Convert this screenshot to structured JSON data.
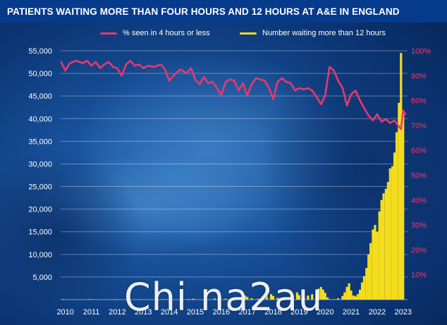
{
  "colors": {
    "pct_line": "#e8386d",
    "wait_bars": "#f5dd1c",
    "left_ticks": "#ffffff",
    "right_ticks": "#ec3b73",
    "grid": "#ffffff"
  },
  "chart_data": {
    "type": "bar+line",
    "title": "PATIENTS WAITING MORE THAN FOUR HOURS AND 12 HOURS AT A&E IN ENGLAND",
    "legend": [
      {
        "label": "% seen in 4 hours or less",
        "series": "pct"
      },
      {
        "label": "Number waiting more than 12 hours",
        "series": "wait"
      }
    ],
    "legend_position": "top-right",
    "grid": true,
    "x_ticks": [
      "2010",
      "2011",
      "2012",
      "2013",
      "2014",
      "2015",
      "2016",
      "2017",
      "2018",
      "2019",
      "2020",
      "2021",
      "2022",
      "2023"
    ],
    "y_left": {
      "min": 0,
      "max": 55000,
      "ticks": [
        5000,
        10000,
        15000,
        20000,
        25000,
        30000,
        35000,
        40000,
        45000,
        50000,
        55000
      ],
      "tick_labels": [
        "5,000",
        "10,000",
        "15,000",
        "20,000",
        "25,000",
        "30,000",
        "35,000",
        "40,000",
        "45,000",
        "50,000",
        "55,000"
      ]
    },
    "y_right": {
      "min": 0,
      "max": 100,
      "ticks": [
        10,
        20,
        30,
        40,
        50,
        60,
        70,
        80,
        90,
        100
      ],
      "tick_labels": [
        "10%",
        "20%",
        "30%",
        "40%",
        "50%",
        "60%",
        "70%",
        "80%",
        "90%",
        "100%"
      ]
    },
    "series": [
      {
        "name": "% seen in 4 hours or less",
        "axis": "right",
        "type": "line",
        "values": [
          {
            "x": 2009.92,
            "y": 95.5
          },
          {
            "x": 2010.08,
            "y": 92.0
          },
          {
            "x": 2010.25,
            "y": 95.0
          },
          {
            "x": 2010.5,
            "y": 96.0
          },
          {
            "x": 2010.75,
            "y": 95.0
          },
          {
            "x": 2010.92,
            "y": 96.0
          },
          {
            "x": 2011.08,
            "y": 94.0
          },
          {
            "x": 2011.25,
            "y": 95.5
          },
          {
            "x": 2011.42,
            "y": 93.0
          },
          {
            "x": 2011.58,
            "y": 94.5
          },
          {
            "x": 2011.75,
            "y": 95.5
          },
          {
            "x": 2011.92,
            "y": 93.5
          },
          {
            "x": 2012.08,
            "y": 93.0
          },
          {
            "x": 2012.25,
            "y": 90.0
          },
          {
            "x": 2012.42,
            "y": 94.5
          },
          {
            "x": 2012.58,
            "y": 96.0
          },
          {
            "x": 2012.75,
            "y": 94.0
          },
          {
            "x": 2012.92,
            "y": 94.5
          },
          {
            "x": 2013.08,
            "y": 93.0
          },
          {
            "x": 2013.25,
            "y": 94.0
          },
          {
            "x": 2013.5,
            "y": 93.5
          },
          {
            "x": 2013.75,
            "y": 94.5
          },
          {
            "x": 2013.92,
            "y": 92.5
          },
          {
            "x": 2014.08,
            "y": 88.0
          },
          {
            "x": 2014.25,
            "y": 90.0
          },
          {
            "x": 2014.5,
            "y": 92.5
          },
          {
            "x": 2014.75,
            "y": 91.0
          },
          {
            "x": 2014.92,
            "y": 93.0
          },
          {
            "x": 2015.08,
            "y": 88.5
          },
          {
            "x": 2015.25,
            "y": 86.5
          },
          {
            "x": 2015.42,
            "y": 89.5
          },
          {
            "x": 2015.58,
            "y": 87.0
          },
          {
            "x": 2015.75,
            "y": 87.5
          },
          {
            "x": 2015.92,
            "y": 85.0
          },
          {
            "x": 2016.08,
            "y": 82.0
          },
          {
            "x": 2016.25,
            "y": 87.5
          },
          {
            "x": 2016.42,
            "y": 88.5
          },
          {
            "x": 2016.58,
            "y": 88.0
          },
          {
            "x": 2016.75,
            "y": 84.0
          },
          {
            "x": 2016.92,
            "y": 87.0
          },
          {
            "x": 2017.08,
            "y": 82.0
          },
          {
            "x": 2017.25,
            "y": 86.5
          },
          {
            "x": 2017.42,
            "y": 89.0
          },
          {
            "x": 2017.58,
            "y": 88.5
          },
          {
            "x": 2017.75,
            "y": 88.0
          },
          {
            "x": 2017.92,
            "y": 85.0
          },
          {
            "x": 2018.08,
            "y": 80.5
          },
          {
            "x": 2018.25,
            "y": 87.5
          },
          {
            "x": 2018.42,
            "y": 89.0
          },
          {
            "x": 2018.58,
            "y": 87.5
          },
          {
            "x": 2018.75,
            "y": 87.0
          },
          {
            "x": 2018.92,
            "y": 84.0
          },
          {
            "x": 2019.08,
            "y": 85.0
          },
          {
            "x": 2019.25,
            "y": 84.5
          },
          {
            "x": 2019.42,
            "y": 85.0
          },
          {
            "x": 2019.58,
            "y": 84.0
          },
          {
            "x": 2019.75,
            "y": 81.5
          },
          {
            "x": 2019.92,
            "y": 78.5
          },
          {
            "x": 2020.08,
            "y": 82.0
          },
          {
            "x": 2020.25,
            "y": 93.5
          },
          {
            "x": 2020.42,
            "y": 92.0
          },
          {
            "x": 2020.58,
            "y": 88.0
          },
          {
            "x": 2020.75,
            "y": 85.0
          },
          {
            "x": 2020.92,
            "y": 78.0
          },
          {
            "x": 2021.08,
            "y": 82.5
          },
          {
            "x": 2021.25,
            "y": 84.0
          },
          {
            "x": 2021.42,
            "y": 80.0
          },
          {
            "x": 2021.58,
            "y": 77.0
          },
          {
            "x": 2021.75,
            "y": 74.0
          },
          {
            "x": 2021.92,
            "y": 72.0
          },
          {
            "x": 2022.08,
            "y": 74.5
          },
          {
            "x": 2022.25,
            "y": 71.5
          },
          {
            "x": 2022.42,
            "y": 72.5
          },
          {
            "x": 2022.58,
            "y": 71.0
          },
          {
            "x": 2022.75,
            "y": 72.0
          },
          {
            "x": 2022.92,
            "y": 69.5
          },
          {
            "x": 2023.0,
            "y": 68.5
          },
          {
            "x": 2023.08,
            "y": 76.0
          },
          {
            "x": 2023.17,
            "y": 74.5
          }
        ]
      },
      {
        "name": "Number waiting more than 12 hours",
        "axis": "left",
        "type": "bar",
        "values": [
          {
            "x": 2010.0,
            "y": 15
          },
          {
            "x": 2011.0,
            "y": 20
          },
          {
            "x": 2012.0,
            "y": 30
          },
          {
            "x": 2013.0,
            "y": 40
          },
          {
            "x": 2013.83,
            "y": 60
          },
          {
            "x": 2014.0,
            "y": 90
          },
          {
            "x": 2014.83,
            "y": 120
          },
          {
            "x": 2015.0,
            "y": 180
          },
          {
            "x": 2015.83,
            "y": 250
          },
          {
            "x": 2016.0,
            "y": 350
          },
          {
            "x": 2016.25,
            "y": 200
          },
          {
            "x": 2016.5,
            "y": 300
          },
          {
            "x": 2016.83,
            "y": 450
          },
          {
            "x": 2017.0,
            "y": 900
          },
          {
            "x": 2017.08,
            "y": 600
          },
          {
            "x": 2017.25,
            "y": 300
          },
          {
            "x": 2017.5,
            "y": 200
          },
          {
            "x": 2017.83,
            "y": 700
          },
          {
            "x": 2018.0,
            "y": 1200
          },
          {
            "x": 2018.08,
            "y": 800
          },
          {
            "x": 2018.25,
            "y": 400
          },
          {
            "x": 2018.5,
            "y": 300
          },
          {
            "x": 2018.83,
            "y": 900
          },
          {
            "x": 2019.0,
            "y": 1600
          },
          {
            "x": 2019.08,
            "y": 1000
          },
          {
            "x": 2019.25,
            "y": 600
          },
          {
            "x": 2019.42,
            "y": 900
          },
          {
            "x": 2019.58,
            "y": 1200
          },
          {
            "x": 2019.75,
            "y": 1800
          },
          {
            "x": 2019.83,
            "y": 2400
          },
          {
            "x": 2019.92,
            "y": 2800
          },
          {
            "x": 2020.0,
            "y": 2200
          },
          {
            "x": 2020.08,
            "y": 1500
          },
          {
            "x": 2020.17,
            "y": 500
          },
          {
            "x": 2020.25,
            "y": 100
          },
          {
            "x": 2020.42,
            "y": 100
          },
          {
            "x": 2020.58,
            "y": 300
          },
          {
            "x": 2020.75,
            "y": 800
          },
          {
            "x": 2020.83,
            "y": 1600
          },
          {
            "x": 2020.92,
            "y": 2800
          },
          {
            "x": 2021.0,
            "y": 3600
          },
          {
            "x": 2021.08,
            "y": 2000
          },
          {
            "x": 2021.17,
            "y": 900
          },
          {
            "x": 2021.25,
            "y": 700
          },
          {
            "x": 2021.33,
            "y": 1200
          },
          {
            "x": 2021.42,
            "y": 2200
          },
          {
            "x": 2021.5,
            "y": 3800
          },
          {
            "x": 2021.58,
            "y": 5200
          },
          {
            "x": 2021.67,
            "y": 7000
          },
          {
            "x": 2021.75,
            "y": 10000
          },
          {
            "x": 2021.83,
            "y": 12500
          },
          {
            "x": 2021.92,
            "y": 15500
          },
          {
            "x": 2022.0,
            "y": 16500
          },
          {
            "x": 2022.08,
            "y": 15000
          },
          {
            "x": 2022.17,
            "y": 19500
          },
          {
            "x": 2022.25,
            "y": 22000
          },
          {
            "x": 2022.33,
            "y": 23500
          },
          {
            "x": 2022.42,
            "y": 24500
          },
          {
            "x": 2022.5,
            "y": 26000
          },
          {
            "x": 2022.58,
            "y": 29000
          },
          {
            "x": 2022.67,
            "y": 29500
          },
          {
            "x": 2022.75,
            "y": 32500
          },
          {
            "x": 2022.83,
            "y": 37000
          },
          {
            "x": 2022.92,
            "y": 43500
          },
          {
            "x": 2023.0,
            "y": 54500
          },
          {
            "x": 2023.08,
            "y": 41000
          }
        ]
      }
    ],
    "xlim": [
      2009.9,
      2023.25
    ]
  },
  "watermark": "Chi na2au"
}
